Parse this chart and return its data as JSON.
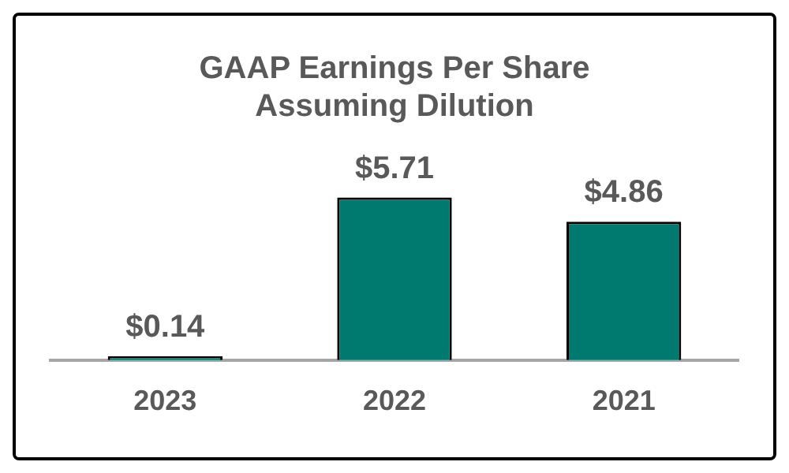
{
  "chart_data": {
    "type": "bar",
    "title": "GAAP Earnings Per Share\nAssuming Dilution",
    "categories": [
      "2023",
      "2022",
      "2021"
    ],
    "values": [
      0.14,
      5.71,
      4.86
    ],
    "value_labels": [
      "$0.14",
      "$5.71",
      "$4.86"
    ],
    "color": "#007a6e",
    "grid": false,
    "legend": false
  }
}
